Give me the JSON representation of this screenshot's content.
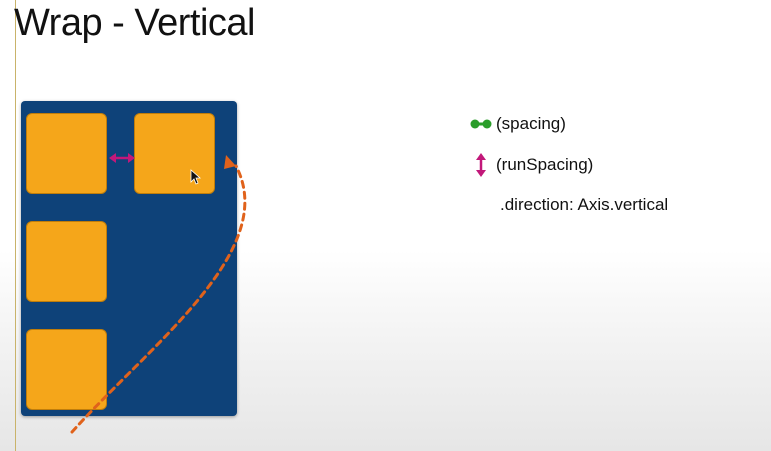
{
  "slide": {
    "title": "Wrap - Vertical"
  },
  "legend": {
    "spacing_label": "(spacing)",
    "spacing_icon": "green-dumbbell-icon",
    "run_spacing_label": "(runSpacing)",
    "run_spacing_icon": "magenta-double-arrow-icon",
    "direction_label": ".direction: Axis.vertical"
  },
  "colors": {
    "panel": "#0e4279",
    "box": "#f5a61a",
    "spacing_marker": "#2a9d2a",
    "run_spacing_marker": "#c2187a",
    "flow_arrow": "#e0621b"
  },
  "diagram": {
    "box_count": 4
  }
}
